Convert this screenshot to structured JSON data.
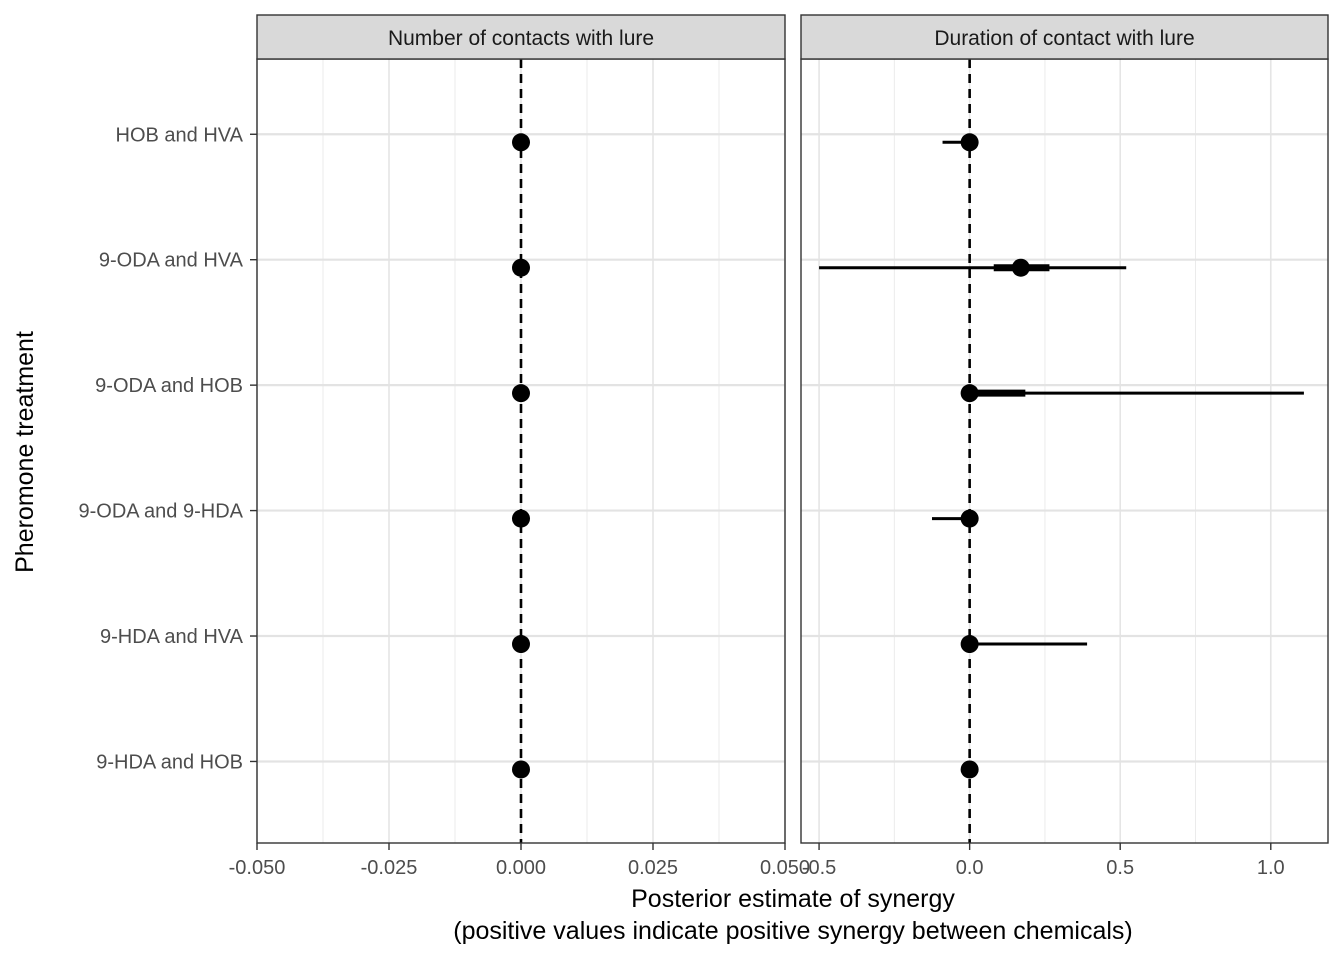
{
  "chart_data": {
    "type": "forest",
    "ylabel": "Pheromone treatment",
    "xlabel_line1": "Posterior estimate of synergy",
    "xlabel_line2": "(positive values indicate positive synergy between chemicals)",
    "categories": [
      "HOB and HVA",
      "9-ODA and HVA",
      "9-ODA and HOB",
      "9-ODA and 9-HDA",
      "9-HDA and HVA",
      "9-HDA and HOB"
    ],
    "grid": true,
    "reference_line": {
      "x": 0,
      "style": "dashed"
    },
    "panels": [
      {
        "title": "Number of contacts with lure",
        "xlim": [
          -0.05,
          0.05
        ],
        "xticks": [
          -0.05,
          -0.025,
          0,
          0.025,
          0.05
        ],
        "xtick_labels": [
          "-0.050",
          "-0.025",
          "0.000",
          "0.025",
          "0.050"
        ],
        "estimates": [
          {
            "category": "HOB and HVA",
            "median": 0,
            "inner": [
              0,
              0
            ],
            "outer": [
              0,
              0
            ]
          },
          {
            "category": "9-ODA and HVA",
            "median": 0,
            "inner": [
              0,
              0
            ],
            "outer": [
              0,
              0
            ]
          },
          {
            "category": "9-ODA and HOB",
            "median": 0,
            "inner": [
              0,
              0
            ],
            "outer": [
              0,
              0
            ]
          },
          {
            "category": "9-ODA and 9-HDA",
            "median": 0,
            "inner": [
              0,
              0
            ],
            "outer": [
              0,
              0
            ]
          },
          {
            "category": "9-HDA and HVA",
            "median": 0,
            "inner": [
              0,
              0
            ],
            "outer": [
              0,
              0
            ]
          },
          {
            "category": "9-HDA and HOB",
            "median": 0,
            "inner": [
              0,
              0
            ],
            "outer": [
              0,
              0
            ]
          }
        ]
      },
      {
        "title": "Duration of contact with lure",
        "xlim": [
          -0.56,
          1.19
        ],
        "xticks": [
          -0.5,
          0,
          0.5,
          1.0
        ],
        "xtick_labels": [
          "-0.5",
          "0.0",
          "0.5",
          "1.0"
        ],
        "estimates": [
          {
            "category": "HOB and HVA",
            "median": 0,
            "inner": [
              -0.01,
              0.005
            ],
            "outer": [
              -0.09,
              0.005
            ]
          },
          {
            "category": "9-ODA and HVA",
            "median": 0.17,
            "inner": [
              0.08,
              0.265
            ],
            "outer": [
              -0.5,
              0.52
            ]
          },
          {
            "category": "9-ODA and HOB",
            "median": 0,
            "inner": [
              0.005,
              0.185
            ],
            "outer": [
              0,
              1.11
            ]
          },
          {
            "category": "9-ODA and 9-HDA",
            "median": 0,
            "inner": [
              -0.01,
              0.005
            ],
            "outer": [
              -0.125,
              0.005
            ]
          },
          {
            "category": "9-HDA and HVA",
            "median": 0,
            "inner": [
              0,
              0.01
            ],
            "outer": [
              0,
              0.39
            ]
          },
          {
            "category": "9-HDA and HOB",
            "median": 0,
            "inner": [
              0,
              0
            ],
            "outer": [
              0,
              0
            ]
          }
        ]
      }
    ]
  }
}
